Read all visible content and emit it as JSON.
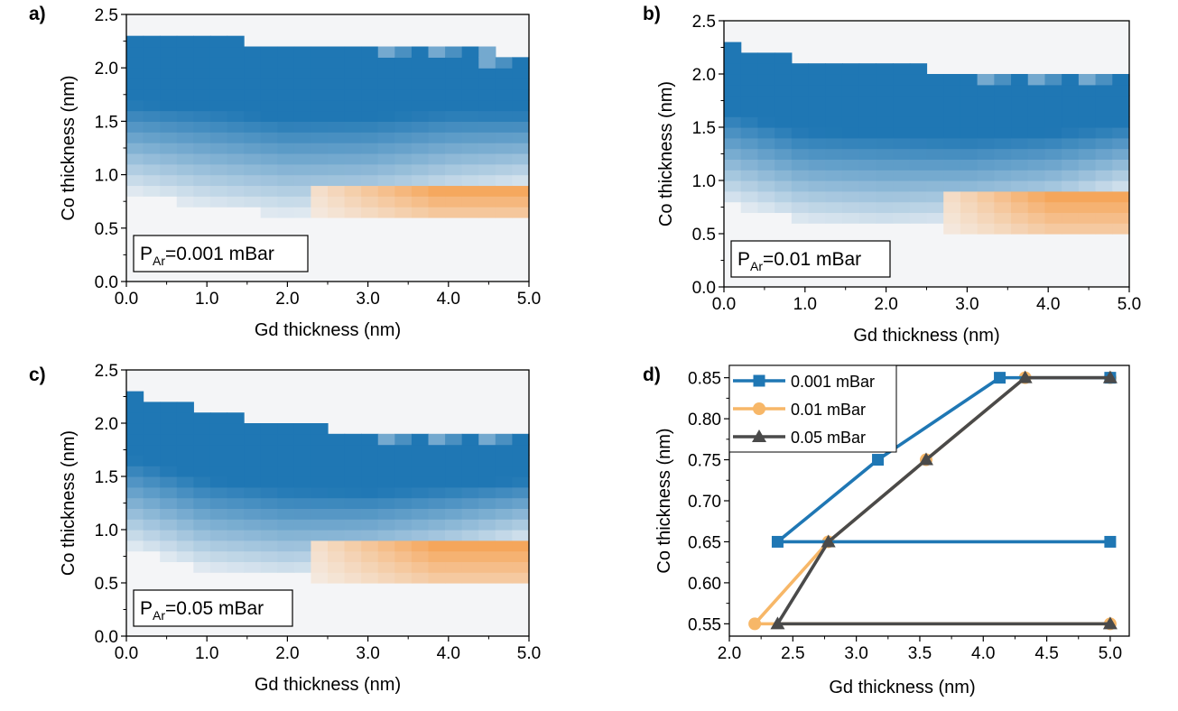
{
  "chart_data": [
    {
      "type": "heatmap",
      "panel_label": "a)",
      "annotation": {
        "main": "P",
        "sub": "Ar",
        "rest": "=0.001 mBar"
      },
      "xlabel": "Gd thickness (nm)",
      "ylabel": "Co thickness (nm)",
      "xlim": [
        0,
        5
      ],
      "ylim": [
        0,
        2.5
      ],
      "xticks": [
        "0.0",
        "1.0",
        "2.0",
        "3.0",
        "4.0",
        "5.0"
      ],
      "yticks": [
        "0.0",
        "0.5",
        "1.0",
        "1.5",
        "2.0",
        "2.5"
      ],
      "colors": {
        "blue": "#1f77b4",
        "orange": "#f5a04f",
        "background": "#f4f5f7"
      },
      "blue_region": {
        "gd": [
          0.0,
          1.0,
          2.0,
          3.0,
          4.0,
          5.0
        ],
        "co_top": [
          2.3,
          2.3,
          2.2,
          2.2,
          2.2,
          2.1
        ],
        "co_bottom": [
          0.85,
          0.7,
          0.62,
          0.65,
          0.8,
          0.9
        ]
      },
      "orange_region": {
        "gd_start": 2.3,
        "co_range": [
          0.6,
          0.9
        ]
      }
    },
    {
      "type": "heatmap",
      "panel_label": "b)",
      "annotation": {
        "main": "P",
        "sub": "Ar",
        "rest": "=0.01 mBar"
      },
      "xlabel": "Gd thickness (nm)",
      "ylabel": "Co thickness (nm)",
      "xlim": [
        0,
        5
      ],
      "ylim": [
        0,
        2.5
      ],
      "xticks": [
        "0.0",
        "1.0",
        "2.0",
        "3.0",
        "4.0",
        "5.0"
      ],
      "yticks": [
        "0.0",
        "0.5",
        "1.0",
        "1.5",
        "2.0",
        "2.5"
      ],
      "colors": {
        "blue": "#1f77b4",
        "orange": "#f5a04f",
        "background": "#f4f5f7"
      },
      "blue_region": {
        "gd": [
          0.0,
          1.0,
          2.0,
          3.0,
          4.0,
          5.0
        ],
        "co_top": [
          2.3,
          2.1,
          2.1,
          2.0,
          2.0,
          2.0
        ],
        "co_bottom": [
          0.8,
          0.6,
          0.55,
          0.6,
          0.7,
          0.9
        ]
      },
      "orange_region": {
        "gd_start": 2.7,
        "co_range": [
          0.5,
          0.9
        ]
      }
    },
    {
      "type": "heatmap",
      "panel_label": "c)",
      "annotation": {
        "main": "P",
        "sub": "Ar",
        "rest": "=0.05 mBar"
      },
      "xlabel": "Gd thickness (nm)",
      "ylabel": "Co thickness (nm)",
      "xlim": [
        0,
        5
      ],
      "ylim": [
        0,
        2.5
      ],
      "xticks": [
        "0.0",
        "1.0",
        "2.0",
        "3.0",
        "4.0",
        "5.0"
      ],
      "yticks": [
        "0.0",
        "0.5",
        "1.0",
        "1.5",
        "2.0",
        "2.5"
      ],
      "colors": {
        "blue": "#1f77b4",
        "orange": "#f5a04f",
        "background": "#f4f5f7"
      },
      "blue_region": {
        "gd": [
          0.0,
          1.0,
          2.0,
          3.0,
          4.0,
          5.0
        ],
        "co_top": [
          2.3,
          2.1,
          2.0,
          1.9,
          1.9,
          1.9
        ],
        "co_bottom": [
          0.85,
          0.62,
          0.55,
          0.62,
          0.75,
          0.9
        ]
      },
      "orange_region": {
        "gd_start": 2.3,
        "co_range": [
          0.5,
          0.9
        ]
      }
    },
    {
      "type": "line",
      "panel_label": "d)",
      "xlabel": "Gd thickness (nm)",
      "ylabel": "Co thickness (nm)",
      "xlim": [
        2.0,
        5.15
      ],
      "ylim": [
        0.535,
        0.865
      ],
      "xticks": [
        "2.0",
        "2.5",
        "3.0",
        "3.5",
        "4.0",
        "4.5",
        "5.0"
      ],
      "yticks": [
        "0.55",
        "0.60",
        "0.65",
        "0.70",
        "0.75",
        "0.80",
        "0.85"
      ],
      "legend": "top-left",
      "series": [
        {
          "name": "0.001 mBar",
          "color": "#1f77b4",
          "marker": "square",
          "x": [
            5.0,
            2.38,
            3.17,
            4.13,
            5.0
          ],
          "y": [
            0.65,
            0.65,
            0.75,
            0.85,
            0.85
          ]
        },
        {
          "name": "0.01 mBar",
          "color": "#f7b768",
          "marker": "circle",
          "x": [
            5.0,
            2.2,
            2.78,
            3.55,
            4.33,
            5.0
          ],
          "y": [
            0.55,
            0.55,
            0.65,
            0.75,
            0.85,
            0.85
          ]
        },
        {
          "name": "0.05 mBar",
          "color": "#4a4a4a",
          "marker": "triangle",
          "x": [
            5.0,
            2.38,
            2.78,
            3.55,
            4.33,
            5.0
          ],
          "y": [
            0.55,
            0.55,
            0.65,
            0.75,
            0.85,
            0.85
          ]
        }
      ]
    }
  ]
}
